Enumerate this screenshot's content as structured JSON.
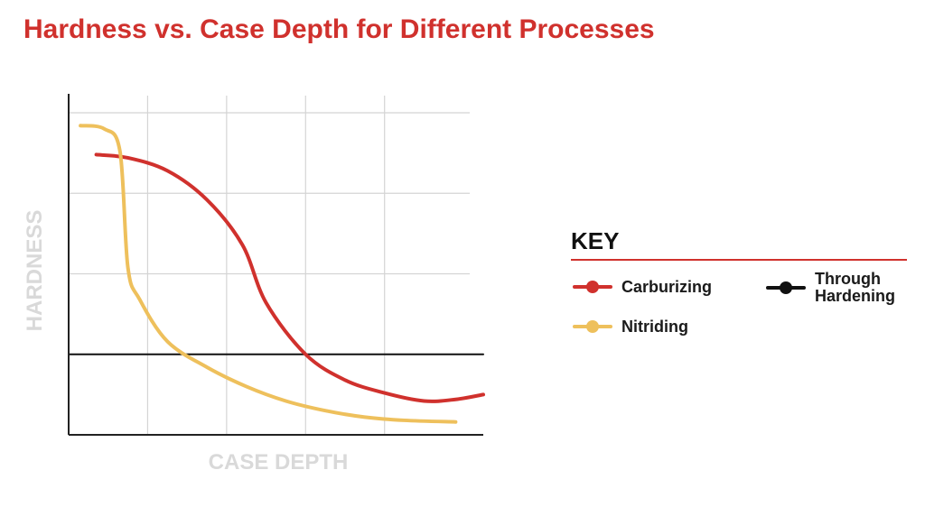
{
  "chart_data": {
    "type": "line",
    "title": "Hardness vs. Case Depth for Different Processes",
    "xlabel": "CASE DEPTH",
    "ylabel": "HARDNESS",
    "xlim": [
      0,
      10.5
    ],
    "ylim": [
      0,
      10
    ],
    "grid": true,
    "legend_title": "KEY",
    "legend_position": "right",
    "series": [
      {
        "name": "Carburizing",
        "color": "#d0312d",
        "points": [
          [
            0.7,
            8.7
          ],
          [
            1.5,
            8.6
          ],
          [
            2.5,
            8.2
          ],
          [
            3.5,
            7.3
          ],
          [
            4.4,
            5.9
          ],
          [
            5.0,
            4.1
          ],
          [
            6.0,
            2.5
          ],
          [
            7.0,
            1.7
          ],
          [
            8.0,
            1.3
          ],
          [
            9.0,
            1.05
          ],
          [
            9.8,
            1.1
          ],
          [
            10.5,
            1.25
          ]
        ]
      },
      {
        "name": "Nitriding",
        "color": "#eec05c",
        "points": [
          [
            0.3,
            9.6
          ],
          [
            0.9,
            9.5
          ],
          [
            1.3,
            8.8
          ],
          [
            1.5,
            5.2
          ],
          [
            1.8,
            4.2
          ],
          [
            2.5,
            2.9
          ],
          [
            3.5,
            2.1
          ],
          [
            4.5,
            1.5
          ],
          [
            5.5,
            1.05
          ],
          [
            6.5,
            0.75
          ],
          [
            7.5,
            0.55
          ],
          [
            8.5,
            0.45
          ],
          [
            9.8,
            0.4
          ]
        ]
      },
      {
        "name": "Through Hardening",
        "color": "#111111",
        "points": [
          [
            0,
            2.5
          ],
          [
            10.5,
            2.5
          ]
        ]
      }
    ]
  }
}
